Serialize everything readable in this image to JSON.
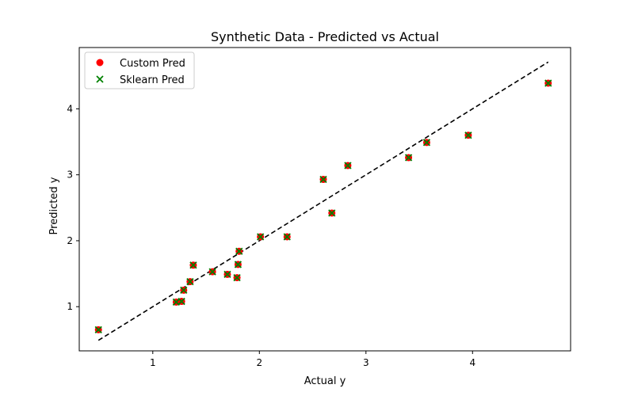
{
  "chart_data": {
    "type": "scatter",
    "title": "Synthetic Data - Predicted vs Actual",
    "xlabel": "Actual y",
    "ylabel": "Predicted y",
    "xlim": [
      0.31,
      4.92
    ],
    "ylim": [
      0.33,
      4.93
    ],
    "xticks": [
      1,
      2,
      3,
      4
    ],
    "yticks": [
      1,
      2,
      3,
      4
    ],
    "grid": false,
    "legend_position": "top-left",
    "series": [
      {
        "name": "Custom Pred",
        "marker": "circle",
        "color": "#ff0000",
        "points": [
          [
            0.49,
            0.65
          ],
          [
            1.22,
            1.07
          ],
          [
            1.27,
            1.08
          ],
          [
            1.29,
            1.25
          ],
          [
            1.35,
            1.38
          ],
          [
            1.38,
            1.63
          ],
          [
            1.56,
            1.53
          ],
          [
            1.7,
            1.49
          ],
          [
            1.79,
            1.44
          ],
          [
            1.8,
            1.64
          ],
          [
            1.81,
            1.84
          ],
          [
            2.01,
            2.06
          ],
          [
            2.26,
            2.06
          ],
          [
            2.6,
            2.93
          ],
          [
            2.68,
            2.42
          ],
          [
            2.83,
            3.14
          ],
          [
            3.4,
            3.26
          ],
          [
            3.57,
            3.49
          ],
          [
            3.96,
            3.6
          ],
          [
            4.71,
            4.39
          ]
        ]
      },
      {
        "name": "Sklearn Pred",
        "marker": "x",
        "color": "#008000",
        "points": [
          [
            0.49,
            0.65
          ],
          [
            1.22,
            1.07
          ],
          [
            1.27,
            1.08
          ],
          [
            1.29,
            1.25
          ],
          [
            1.35,
            1.38
          ],
          [
            1.38,
            1.63
          ],
          [
            1.56,
            1.53
          ],
          [
            1.7,
            1.49
          ],
          [
            1.79,
            1.44
          ],
          [
            1.8,
            1.64
          ],
          [
            1.81,
            1.84
          ],
          [
            2.01,
            2.06
          ],
          [
            2.26,
            2.06
          ],
          [
            2.6,
            2.93
          ],
          [
            2.68,
            2.42
          ],
          [
            2.83,
            3.14
          ],
          [
            3.4,
            3.26
          ],
          [
            3.57,
            3.49
          ],
          [
            3.96,
            3.6
          ],
          [
            4.71,
            4.39
          ]
        ]
      }
    ],
    "reference_line": {
      "style": "dashed",
      "color": "#000000",
      "from": [
        0.49,
        0.49
      ],
      "to": [
        4.71,
        4.71
      ]
    }
  }
}
